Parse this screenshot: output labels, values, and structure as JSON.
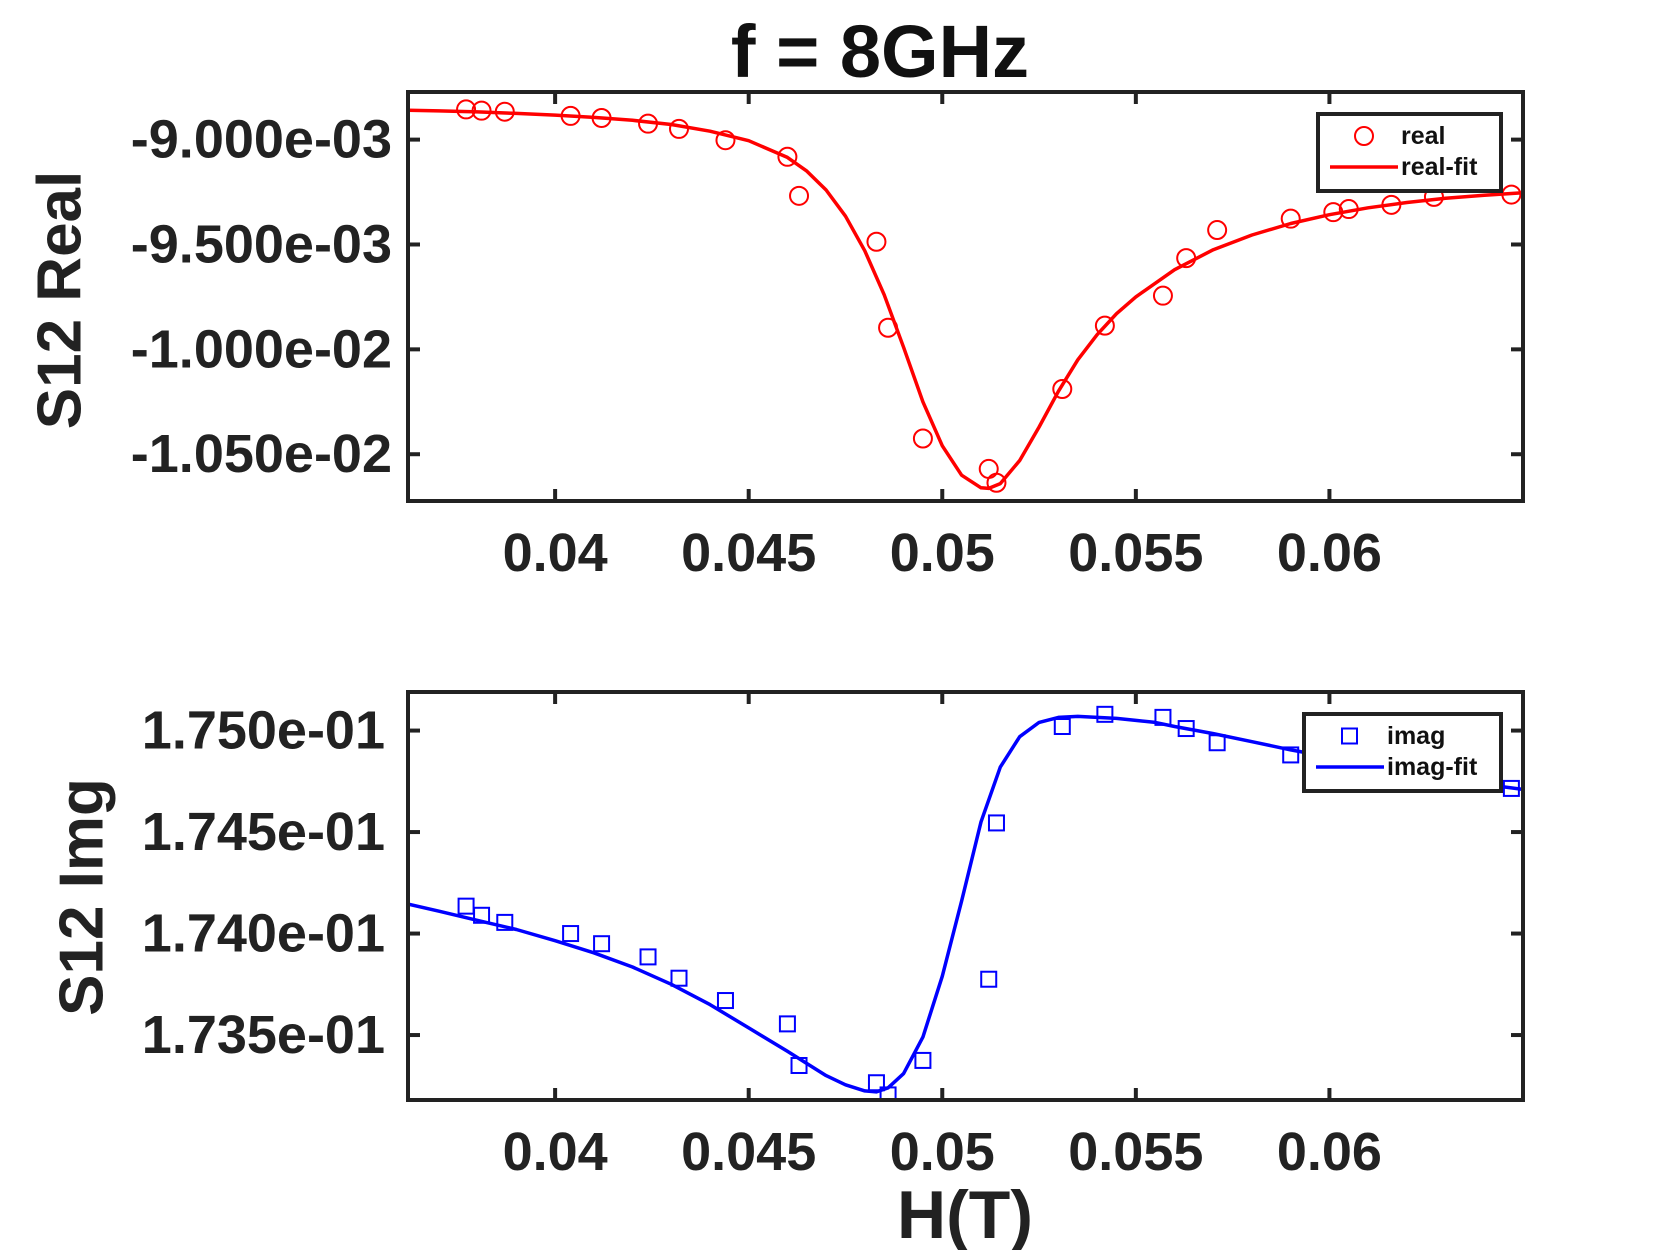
{
  "figure": {
    "title": "f = 8GHz",
    "xlabel": "H(T)"
  },
  "chart_data": [
    {
      "type": "scatter",
      "ylabel": "S12 Real",
      "xlim": [
        0.0362,
        0.065
      ],
      "ylim": [
        -0.010723,
        -0.008773
      ],
      "xticks": [
        0.04,
        0.045,
        0.05,
        0.055,
        0.06
      ],
      "xtick_labels": [
        "0.04",
        "0.045",
        "0.05",
        "0.055",
        "0.06"
      ],
      "yticks": [
        -0.009,
        -0.0095,
        -0.01,
        -0.0105
      ],
      "ytick_labels": [
        "-9.000e-03",
        "-9.500e-03",
        "-1.000e-02",
        "-1.050e-02"
      ],
      "grid": false,
      "legend": {
        "placement": "top-right",
        "entries": [
          "real",
          "real-fit"
        ]
      },
      "series": [
        {
          "name": "real",
          "style": "markers-circle",
          "color": "#ff0000",
          "x": [
            0.0377,
            0.0381,
            0.0387,
            0.0404,
            0.0412,
            0.0424,
            0.0432,
            0.0444,
            0.046,
            0.0463,
            0.0483,
            0.0486,
            0.0495,
            0.0512,
            0.0514,
            0.0531,
            0.0542,
            0.0557,
            0.0563,
            0.0571,
            0.059,
            0.0601,
            0.0605,
            0.0616,
            0.0627,
            0.0647
          ],
          "y": [
            -0.008856,
            -0.008862,
            -0.008867,
            -0.008887,
            -0.008897,
            -0.008924,
            -0.008949,
            -0.009003,
            -0.009082,
            -0.009268,
            -0.009487,
            -0.009897,
            -0.010425,
            -0.01057,
            -0.010636,
            -0.010189,
            -0.009887,
            -0.009744,
            -0.009565,
            -0.009431,
            -0.009377,
            -0.009346,
            -0.009331,
            -0.009311,
            -0.009273,
            -0.009262
          ]
        },
        {
          "name": "real-fit",
          "style": "line",
          "color": "#ff0000",
          "x": [
            0.0362,
            0.037,
            0.038,
            0.039,
            0.04,
            0.041,
            0.042,
            0.043,
            0.044,
            0.045,
            0.046,
            0.0465,
            0.047,
            0.0475,
            0.048,
            0.0485,
            0.049,
            0.0495,
            0.05,
            0.0505,
            0.051,
            0.0512,
            0.0515,
            0.052,
            0.0525,
            0.053,
            0.0535,
            0.054,
            0.0545,
            0.055,
            0.056,
            0.057,
            0.058,
            0.059,
            0.06,
            0.061,
            0.062,
            0.063,
            0.064,
            0.065
          ],
          "y": [
            -0.00886,
            -0.008863,
            -0.008868,
            -0.008875,
            -0.008883,
            -0.008894,
            -0.008908,
            -0.008928,
            -0.00896,
            -0.009005,
            -0.009085,
            -0.00915,
            -0.00924,
            -0.009365,
            -0.00953,
            -0.00974,
            -0.00999,
            -0.01025,
            -0.01046,
            -0.0106,
            -0.01066,
            -0.010663,
            -0.01064,
            -0.01053,
            -0.01037,
            -0.0102,
            -0.01005,
            -0.00993,
            -0.00983,
            -0.00975,
            -0.00962,
            -0.009525,
            -0.009455,
            -0.0094,
            -0.009358,
            -0.009325,
            -0.0093,
            -0.00928,
            -0.009265,
            -0.009253
          ]
        }
      ]
    },
    {
      "type": "scatter",
      "ylabel": "S12 Img",
      "xlim": [
        0.0362,
        0.065
      ],
      "ylim": [
        0.17318,
        0.17519
      ],
      "xticks": [
        0.04,
        0.045,
        0.05,
        0.055,
        0.06
      ],
      "xtick_labels": [
        "0.04",
        "0.045",
        "0.05",
        "0.055",
        "0.06"
      ],
      "yticks": [
        0.1735,
        0.174,
        0.1745,
        0.175
      ],
      "ytick_labels": [
        "1.735e-01",
        "1.740e-01",
        "1.745e-01",
        "1.750e-01"
      ],
      "grid": false,
      "legend": {
        "placement": "top-right",
        "entries": [
          "imag",
          "imag-fit"
        ]
      },
      "series": [
        {
          "name": "imag",
          "style": "markers-square",
          "color": "#0000ff",
          "x": [
            0.0377,
            0.0381,
            0.0387,
            0.0404,
            0.0412,
            0.0424,
            0.0432,
            0.0444,
            0.046,
            0.0463,
            0.0483,
            0.0486,
            0.0495,
            0.0512,
            0.0514,
            0.0531,
            0.0542,
            0.0557,
            0.0563,
            0.0571,
            0.059,
            0.0647
          ],
          "y": [
            0.174135,
            0.17409,
            0.174055,
            0.174,
            0.17395,
            0.173885,
            0.17378,
            0.17367,
            0.173555,
            0.17335,
            0.173265,
            0.173205,
            0.173375,
            0.173775,
            0.174545,
            0.17502,
            0.17508,
            0.175065,
            0.17501,
            0.17494,
            0.17488,
            0.174715
          ]
        },
        {
          "name": "imag-fit",
          "style": "line",
          "color": "#0000ff",
          "x": [
            0.0362,
            0.037,
            0.038,
            0.039,
            0.04,
            0.041,
            0.042,
            0.043,
            0.044,
            0.045,
            0.046,
            0.0465,
            0.047,
            0.0475,
            0.048,
            0.0483,
            0.0486,
            0.049,
            0.0495,
            0.05,
            0.0505,
            0.051,
            0.0515,
            0.052,
            0.0525,
            0.053,
            0.0535,
            0.054,
            0.0545,
            0.055,
            0.0555,
            0.056,
            0.057,
            0.058,
            0.059,
            0.06,
            0.061,
            0.062,
            0.063,
            0.064,
            0.065
          ],
          "y": [
            0.174145,
            0.17411,
            0.174065,
            0.17402,
            0.173965,
            0.173905,
            0.173835,
            0.17375,
            0.17365,
            0.173535,
            0.17342,
            0.17336,
            0.1733,
            0.173255,
            0.173225,
            0.17322,
            0.17324,
            0.17331,
            0.17349,
            0.17379,
            0.17416,
            0.17455,
            0.17482,
            0.17497,
            0.17504,
            0.175065,
            0.17507,
            0.175065,
            0.17506,
            0.17505,
            0.17504,
            0.17502,
            0.174985,
            0.174945,
            0.174905,
            0.17487,
            0.174835,
            0.1748,
            0.174765,
            0.174735,
            0.17471
          ]
        }
      ]
    }
  ]
}
